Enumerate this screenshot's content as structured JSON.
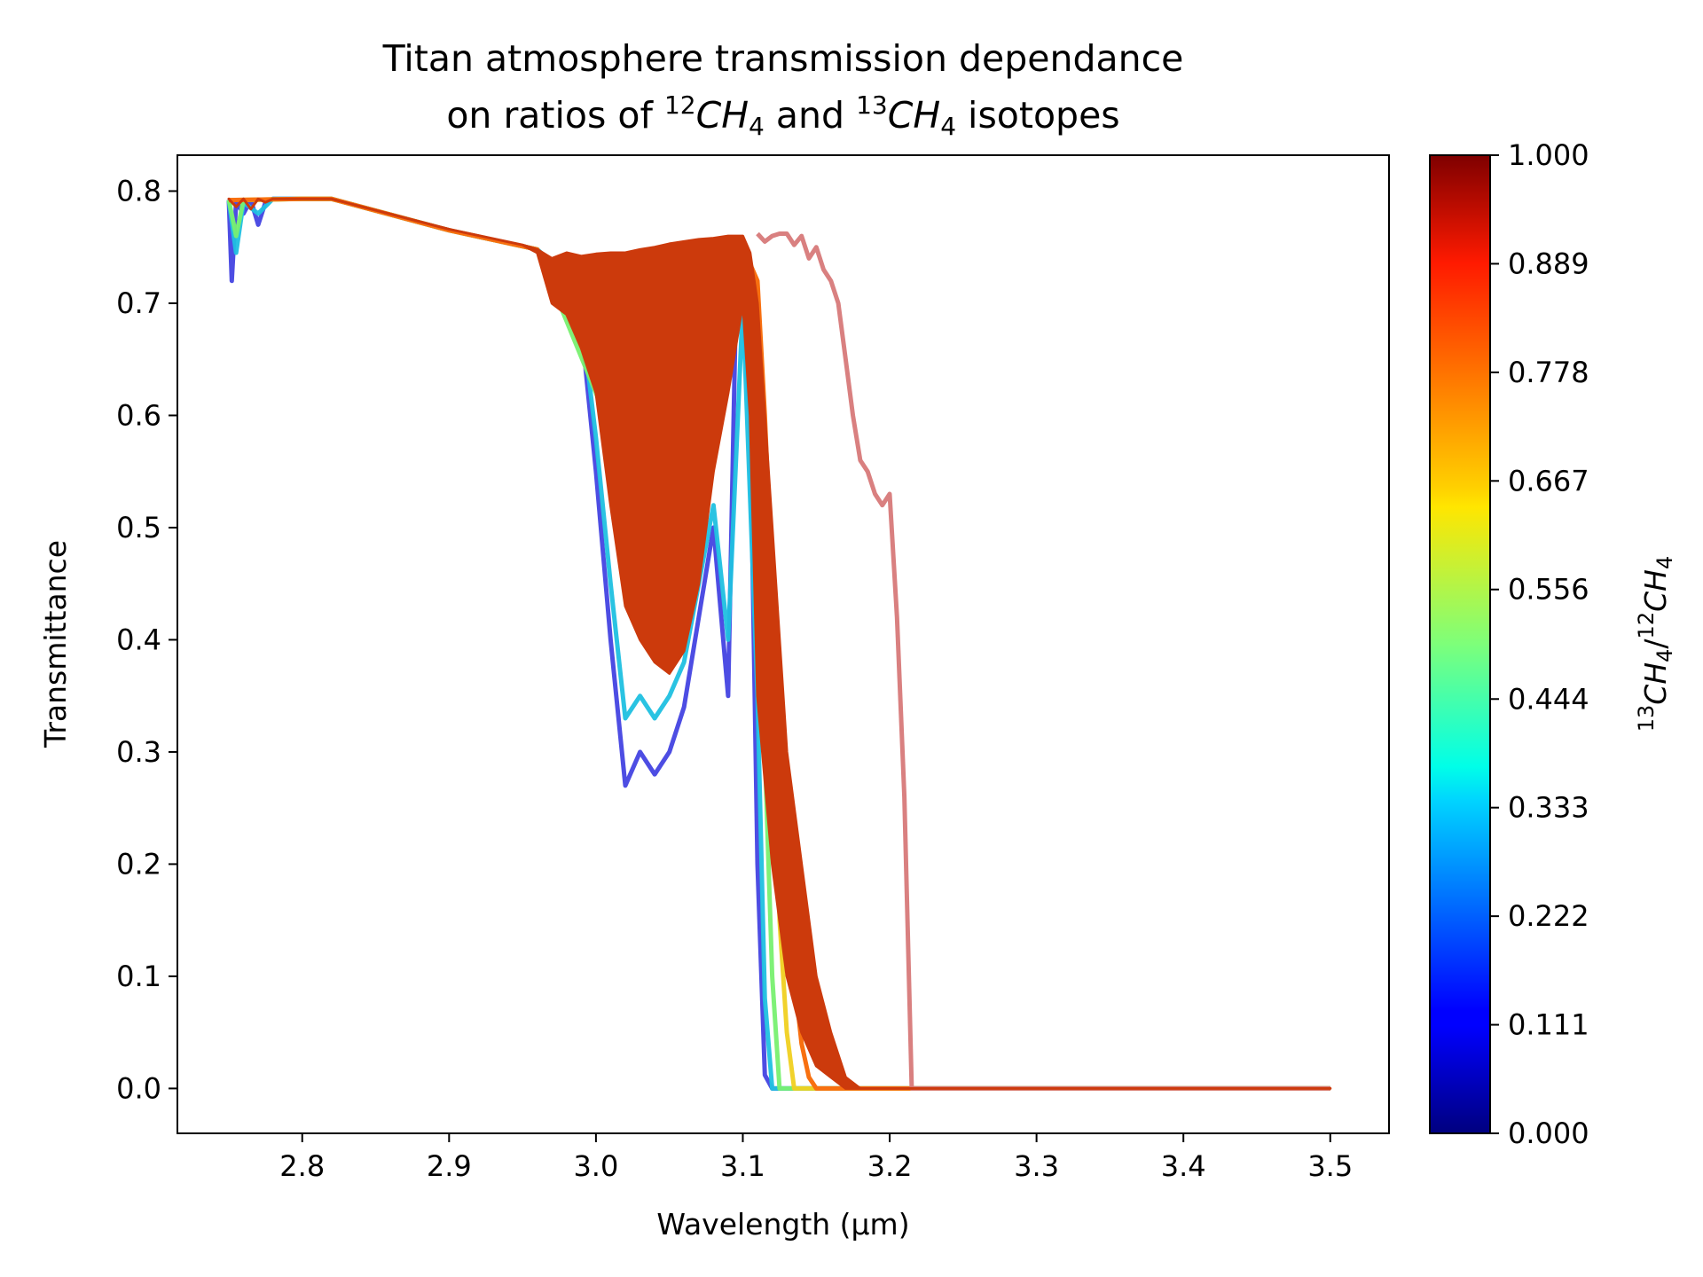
{
  "chart_data": {
    "type": "line",
    "title_line1": "Titan atmosphere transmission dependance",
    "title_line2": {
      "pre": "on ratios of ",
      "iso1_sup": "12",
      "iso1": "CH",
      "iso1_sub": "4",
      "mid": " and ",
      "iso2_sup": "13",
      "iso2": "CH",
      "iso2_sub": "4",
      "post": " isotopes"
    },
    "xlabel": "Wavelength (μm)",
    "ylabel": "Transmittance",
    "xlim": [
      2.715,
      3.54
    ],
    "ylim": [
      -0.04,
      0.832
    ],
    "x_ticks": [
      "2.8",
      "2.9",
      "3.0",
      "3.1",
      "3.2",
      "3.3",
      "3.4",
      "3.5"
    ],
    "y_ticks": [
      "0.0",
      "0.1",
      "0.2",
      "0.3",
      "0.4",
      "0.5",
      "0.6",
      "0.7",
      "0.8"
    ],
    "colorbar": {
      "colormap": "jet",
      "range": [
        0.0,
        1.0
      ],
      "ticks": [
        "0.000",
        "0.111",
        "0.222",
        "0.333",
        "0.444",
        "0.556",
        "0.667",
        "0.778",
        "0.889",
        "1.000"
      ],
      "label": {
        "num_sup": "13",
        "num": "CH",
        "num_sub": "4",
        "slash": "/",
        "den_sup": "12",
        "den": "CH",
        "den_sub": "4"
      }
    },
    "series": [
      {
        "ratio": 0.1,
        "color": "#3a3ae0",
        "alpha": 0.9,
        "x": [
          2.75,
          2.752,
          2.755,
          2.76,
          2.765,
          2.77,
          2.775,
          2.78,
          2.8,
          2.82,
          2.9,
          2.96,
          2.98,
          2.985,
          2.99,
          3.0,
          3.01,
          3.02,
          3.03,
          3.04,
          3.05,
          3.06,
          3.07,
          3.08,
          3.09,
          3.095,
          3.1,
          3.105,
          3.11,
          3.115,
          3.12,
          3.13,
          3.2,
          3.3,
          3.4,
          3.5
        ],
        "y": [
          0.792,
          0.72,
          0.79,
          0.78,
          0.792,
          0.77,
          0.79,
          0.793,
          0.793,
          0.793,
          0.765,
          0.748,
          0.72,
          0.7,
          0.68,
          0.55,
          0.4,
          0.27,
          0.3,
          0.28,
          0.3,
          0.34,
          0.42,
          0.5,
          0.35,
          0.68,
          0.7,
          0.6,
          0.2,
          0.012,
          0.0,
          0.0,
          0.0,
          0.0,
          0.0,
          0.0
        ]
      },
      {
        "ratio": 0.3,
        "color": "#1fc0e0",
        "alpha": 0.95,
        "x": [
          2.75,
          2.755,
          2.76,
          2.77,
          2.78,
          2.8,
          2.82,
          2.9,
          2.96,
          2.98,
          2.99,
          3.0,
          3.01,
          3.02,
          3.03,
          3.04,
          3.05,
          3.06,
          3.07,
          3.08,
          3.09,
          3.1,
          3.11,
          3.115,
          3.12,
          3.125,
          3.13,
          3.2,
          3.3,
          3.4,
          3.5
        ],
        "y": [
          0.792,
          0.745,
          0.79,
          0.78,
          0.793,
          0.793,
          0.793,
          0.765,
          0.748,
          0.725,
          0.69,
          0.58,
          0.45,
          0.33,
          0.35,
          0.33,
          0.35,
          0.38,
          0.45,
          0.52,
          0.4,
          0.7,
          0.35,
          0.08,
          0.0,
          0.0,
          0.0,
          0.0,
          0.0,
          0.0,
          0.0
        ]
      },
      {
        "ratio": 0.5,
        "color": "#78f070",
        "alpha": 0.95,
        "x": [
          2.75,
          2.755,
          2.76,
          2.8,
          2.82,
          2.9,
          2.96,
          3.0,
          3.05,
          3.08,
          3.1,
          3.11,
          3.115,
          3.12,
          3.125,
          3.13,
          3.2,
          3.3,
          3.4,
          3.5
        ],
        "y": [
          0.792,
          0.76,
          0.792,
          0.793,
          0.793,
          0.765,
          0.748,
          0.62,
          0.45,
          0.58,
          0.72,
          0.55,
          0.3,
          0.1,
          0.0,
          0.0,
          0.0,
          0.0,
          0.0,
          0.0
        ]
      },
      {
        "ratio": 0.7,
        "color": "#f0d020",
        "alpha": 0.95,
        "x": [
          2.75,
          2.8,
          2.82,
          2.9,
          2.96,
          3.0,
          3.05,
          3.1,
          3.11,
          3.12,
          3.125,
          3.13,
          3.135,
          3.14,
          3.2,
          3.3,
          3.4,
          3.5
        ],
        "y": [
          0.792,
          0.793,
          0.793,
          0.765,
          0.748,
          0.64,
          0.48,
          0.74,
          0.6,
          0.4,
          0.15,
          0.05,
          0.0,
          0.0,
          0.0,
          0.0,
          0.0,
          0.0
        ]
      },
      {
        "ratio": 0.8,
        "color": "#f87010",
        "alpha": 1.0,
        "x": [
          2.75,
          2.8,
          2.82,
          2.9,
          2.96,
          3.0,
          3.05,
          3.1,
          3.11,
          3.115,
          3.12,
          3.125,
          3.13,
          3.135,
          3.14,
          3.145,
          3.15,
          3.155,
          3.16,
          3.2,
          3.3,
          3.4,
          3.5
        ],
        "y": [
          0.792,
          0.793,
          0.793,
          0.765,
          0.748,
          0.66,
          0.5,
          0.75,
          0.72,
          0.6,
          0.45,
          0.3,
          0.22,
          0.1,
          0.04,
          0.01,
          0.0,
          0.0,
          0.0,
          0.0,
          0.0,
          0.0,
          0.0
        ]
      },
      {
        "ratio": 1.0,
        "color": "#d98080",
        "alpha": 1.0,
        "x": [
          3.11,
          3.115,
          3.12,
          3.125,
          3.13,
          3.135,
          3.14,
          3.145,
          3.15,
          3.155,
          3.16,
          3.165,
          3.17,
          3.175,
          3.18,
          3.185,
          3.19,
          3.195,
          3.2,
          3.205,
          3.21,
          3.215,
          3.22,
          3.3,
          3.4,
          3.5
        ],
        "y": [
          0.762,
          0.755,
          0.76,
          0.762,
          0.762,
          0.752,
          0.76,
          0.74,
          0.75,
          0.73,
          0.72,
          0.7,
          0.65,
          0.6,
          0.56,
          0.55,
          0.53,
          0.52,
          0.53,
          0.42,
          0.26,
          0.0,
          0.0,
          0.0,
          0.0,
          0.0
        ]
      },
      {
        "ratio": 0.9,
        "color": "#cc3a0c",
        "alpha": 1.0,
        "x": [
          2.75,
          2.752,
          2.755,
          2.76,
          2.765,
          2.77,
          2.775,
          2.78,
          2.8,
          2.82,
          2.9,
          2.95,
          2.96,
          2.97,
          2.98,
          2.99,
          3.0,
          3.01,
          3.02,
          3.03,
          3.04,
          3.05,
          3.06,
          3.07,
          3.08,
          3.09,
          3.1,
          3.105,
          3.11,
          3.12,
          3.13,
          3.14,
          3.15,
          3.16,
          3.17,
          3.18,
          3.3,
          3.4,
          3.5
        ],
        "y": [
          0.793,
          0.79,
          0.786,
          0.793,
          0.784,
          0.793,
          0.79,
          0.793,
          0.793,
          0.793,
          0.766,
          0.752,
          0.748,
          0.74,
          0.745,
          0.742,
          0.744,
          0.745,
          0.745,
          0.748,
          0.75,
          0.753,
          0.755,
          0.757,
          0.758,
          0.76,
          0.76,
          0.745,
          0.7,
          0.5,
          0.3,
          0.2,
          0.1,
          0.05,
          0.01,
          0.0,
          0.0,
          0.0,
          0.0
        ],
        "lower_envelope": [
          0.793,
          0.79,
          0.786,
          0.793,
          0.784,
          0.793,
          0.79,
          0.793,
          0.793,
          0.793,
          0.766,
          0.752,
          0.745,
          0.7,
          0.69,
          0.66,
          0.62,
          0.52,
          0.43,
          0.4,
          0.38,
          0.37,
          0.39,
          0.45,
          0.55,
          0.62,
          0.7,
          0.6,
          0.35,
          0.2,
          0.1,
          0.05,
          0.02,
          0.01,
          0.0,
          0.0,
          0.0,
          0.0,
          0.0
        ]
      }
    ]
  }
}
